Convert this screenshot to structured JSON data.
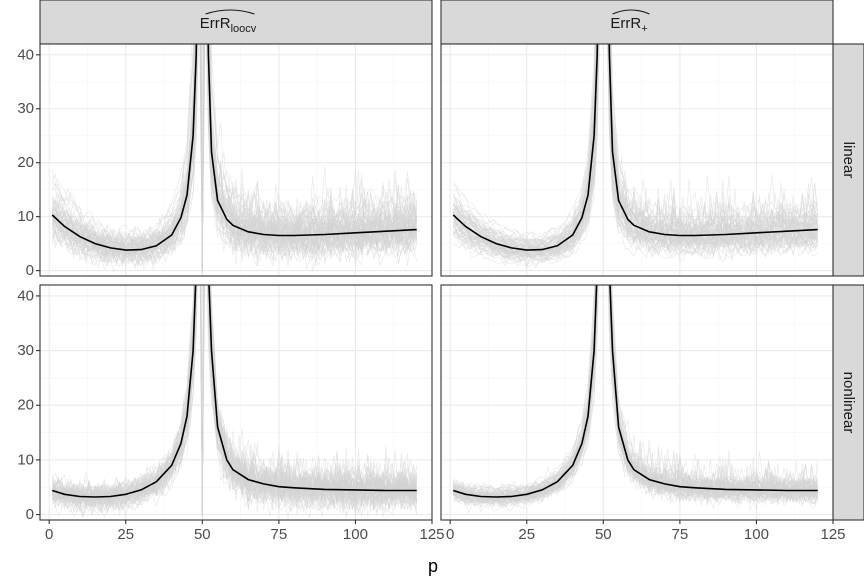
{
  "chart_data": {
    "type": "line",
    "xlabel": "p",
    "ylabel": "",
    "xlim": [
      -3,
      125
    ],
    "ylim": [
      -1,
      42
    ],
    "x_ticks": [
      0,
      25,
      50,
      75,
      100,
      125
    ],
    "y_ticks": [
      0,
      10,
      20,
      30,
      40
    ],
    "grid": true,
    "legend": "none",
    "colors": {
      "mean_line": "#000000",
      "replicates": "#d3d3d3",
      "strip_fill": "#d9d9d9",
      "panel_border": "#333333",
      "grid_major": "#ebebeb",
      "grid_minor": "#f5f5f5"
    },
    "column_strips": [
      {
        "main": "ErrR",
        "sub": "loocv"
      },
      {
        "main": "ErrR",
        "sub": "+"
      }
    ],
    "row_strips": [
      "linear",
      "nonlinear"
    ],
    "panels": [
      {
        "col": 0,
        "row": 0,
        "mean_series": {
          "x": [
            1,
            5,
            10,
            15,
            20,
            25,
            30,
            35,
            40,
            43,
            45,
            47,
            48,
            49,
            51,
            52,
            53,
            55,
            58,
            60,
            65,
            70,
            75,
            80,
            90,
            100,
            110,
            120
          ],
          "y": [
            10.3,
            8.2,
            6.3,
            5.0,
            4.2,
            3.8,
            3.9,
            4.6,
            6.6,
            9.8,
            14.0,
            25.0,
            40.0,
            80.0,
            80.0,
            40.0,
            22.0,
            13.0,
            9.5,
            8.4,
            7.2,
            6.7,
            6.5,
            6.5,
            6.7,
            7.0,
            7.3,
            7.6
          ]
        }
      },
      {
        "col": 1,
        "row": 0,
        "mean_series": {
          "x": [
            1,
            5,
            10,
            15,
            20,
            25,
            30,
            35,
            40,
            43,
            45,
            47,
            48,
            49,
            51,
            52,
            53,
            55,
            58,
            60,
            65,
            70,
            75,
            80,
            90,
            100,
            110,
            120
          ],
          "y": [
            10.3,
            8.2,
            6.3,
            5.0,
            4.2,
            3.8,
            3.9,
            4.6,
            6.6,
            9.8,
            14.0,
            25.0,
            40.0,
            80.0,
            80.0,
            40.0,
            22.0,
            13.0,
            9.5,
            8.4,
            7.2,
            6.7,
            6.5,
            6.5,
            6.7,
            7.0,
            7.3,
            7.6
          ]
        }
      },
      {
        "col": 0,
        "row": 1,
        "mean_series": {
          "x": [
            1,
            5,
            10,
            15,
            20,
            25,
            30,
            35,
            40,
            43,
            45,
            47,
            48,
            49,
            51,
            52,
            53,
            55,
            58,
            60,
            65,
            70,
            75,
            80,
            90,
            100,
            110,
            120
          ],
          "y": [
            4.4,
            3.7,
            3.3,
            3.2,
            3.3,
            3.7,
            4.5,
            6.0,
            9.0,
            13.0,
            18.0,
            30.0,
            45.0,
            80.0,
            80.0,
            45.0,
            30.0,
            16.0,
            10.0,
            8.2,
            6.4,
            5.6,
            5.1,
            4.9,
            4.6,
            4.5,
            4.4,
            4.4
          ]
        }
      },
      {
        "col": 1,
        "row": 1,
        "mean_series": {
          "x": [
            1,
            5,
            10,
            15,
            20,
            25,
            30,
            35,
            40,
            43,
            45,
            47,
            48,
            49,
            51,
            52,
            53,
            55,
            58,
            60,
            65,
            70,
            75,
            80,
            90,
            100,
            110,
            120
          ],
          "y": [
            4.4,
            3.7,
            3.3,
            3.2,
            3.3,
            3.7,
            4.5,
            6.0,
            9.0,
            13.0,
            18.0,
            30.0,
            45.0,
            80.0,
            80.0,
            45.0,
            30.0,
            16.0,
            10.0,
            8.2,
            6.4,
            5.6,
            5.1,
            4.9,
            4.6,
            4.5,
            4.4,
            4.4
          ]
        }
      }
    ]
  }
}
